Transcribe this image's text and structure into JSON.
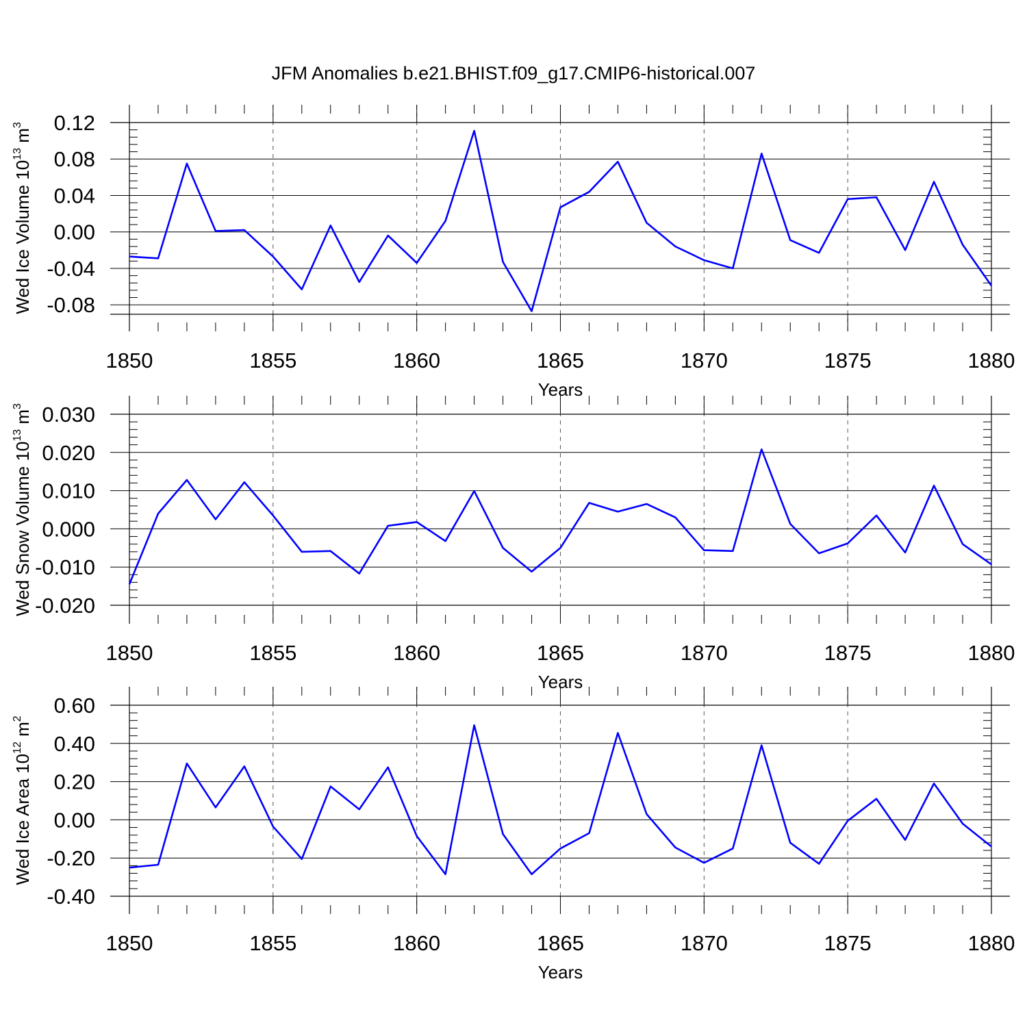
{
  "figure": {
    "title": "JFM Anomalies b.e21.BHIST.f09_g17.CMIP6-historical.007",
    "line_color": "#0000ff",
    "grid_color": "#555555"
  },
  "chart_data": [
    {
      "type": "line",
      "xlabel": "Years",
      "ylabel": {
        "pre": "Wed Ice Volume 10",
        "exp": "13",
        "unit": " m",
        "unit_exp": "3"
      },
      "xlim": [
        1850,
        1880
      ],
      "ylim": [
        -0.09,
        0.12
      ],
      "xticks": [
        1850,
        1855,
        1860,
        1865,
        1870,
        1875,
        1880
      ],
      "xtick_labels": [
        "1850",
        "1855",
        "1860",
        "1865",
        "1870",
        "1875",
        "1880"
      ],
      "yticks": [
        -0.08,
        -0.04,
        0.0,
        0.04,
        0.08,
        0.12
      ],
      "ytick_labels": [
        "-0.08",
        "-0.04",
        "0.00",
        "0.04",
        "0.08",
        "0.12"
      ],
      "grid": "vertical dashed at labeled x ticks",
      "x": [
        1850,
        1851,
        1852,
        1853,
        1854,
        1855,
        1856,
        1857,
        1858,
        1859,
        1860,
        1861,
        1862,
        1863,
        1864,
        1865,
        1866,
        1867,
        1868,
        1869,
        1870,
        1871,
        1872,
        1873,
        1874,
        1875,
        1876,
        1877,
        1878,
        1879,
        1880
      ],
      "values": [
        -0.027,
        -0.029,
        0.075,
        0.001,
        0.002,
        -0.027,
        -0.063,
        0.007,
        -0.055,
        -0.004,
        -0.034,
        0.012,
        0.111,
        -0.033,
        -0.087,
        0.027,
        0.044,
        0.077,
        0.01,
        -0.016,
        -0.031,
        -0.04,
        0.086,
        -0.009,
        -0.023,
        0.036,
        0.038,
        -0.02,
        0.055,
        -0.014,
        -0.059
      ]
    },
    {
      "type": "line",
      "xlabel": "Years",
      "ylabel": {
        "pre": "Wed Snow Volume 10",
        "exp": "13",
        "unit": " m",
        "unit_exp": "3"
      },
      "xlim": [
        1850,
        1880
      ],
      "ylim": [
        -0.02,
        0.03
      ],
      "xticks": [
        1850,
        1855,
        1860,
        1865,
        1870,
        1875,
        1880
      ],
      "xtick_labels": [
        "1850",
        "1855",
        "1860",
        "1865",
        "1870",
        "1875",
        "1880"
      ],
      "yticks": [
        -0.02,
        -0.01,
        0.0,
        0.01,
        0.02,
        0.03
      ],
      "ytick_labels": [
        "-0.020",
        "-0.010",
        "0.000",
        "0.010",
        "0.020",
        "0.030"
      ],
      "grid": "vertical dashed at labeled x ticks",
      "x": [
        1850,
        1851,
        1852,
        1853,
        1854,
        1855,
        1856,
        1857,
        1858,
        1859,
        1860,
        1861,
        1862,
        1863,
        1864,
        1865,
        1866,
        1867,
        1868,
        1869,
        1870,
        1871,
        1872,
        1873,
        1874,
        1875,
        1876,
        1877,
        1878,
        1879,
        1880
      ],
      "values": [
        -0.0145,
        0.004,
        0.0128,
        0.0025,
        0.0122,
        0.0035,
        -0.006,
        -0.0058,
        -0.0117,
        0.0008,
        0.0018,
        -0.0032,
        0.0099,
        -0.005,
        -0.0112,
        -0.005,
        0.0068,
        0.0045,
        0.0065,
        0.003,
        -0.0056,
        -0.0058,
        0.0208,
        0.0013,
        -0.0064,
        -0.0038,
        0.0035,
        -0.0062,
        0.0113,
        -0.004,
        -0.0093
      ]
    },
    {
      "type": "line",
      "xlabel": "Years",
      "ylabel": {
        "pre": "Wed Ice Area 10",
        "exp": "12",
        "unit": " m",
        "unit_exp": "2"
      },
      "xlim": [
        1850,
        1880
      ],
      "ylim": [
        -0.4,
        0.6
      ],
      "xticks": [
        1850,
        1855,
        1860,
        1865,
        1870,
        1875,
        1880
      ],
      "xtick_labels": [
        "1850",
        "1855",
        "1860",
        "1865",
        "1870",
        "1875",
        "1880"
      ],
      "yticks": [
        -0.4,
        -0.2,
        0.0,
        0.2,
        0.4,
        0.6
      ],
      "ytick_labels": [
        "-0.40",
        "-0.20",
        "0.00",
        "0.20",
        "0.40",
        "0.60"
      ],
      "grid": "vertical dashed at labeled x ticks",
      "x": [
        1850,
        1851,
        1852,
        1853,
        1854,
        1855,
        1856,
        1857,
        1858,
        1859,
        1860,
        1861,
        1862,
        1863,
        1864,
        1865,
        1866,
        1867,
        1868,
        1869,
        1870,
        1871,
        1872,
        1873,
        1874,
        1875,
        1876,
        1877,
        1878,
        1879,
        1880
      ],
      "values": [
        -0.25,
        -0.235,
        0.295,
        0.065,
        0.28,
        -0.035,
        -0.205,
        0.175,
        0.055,
        0.275,
        -0.085,
        -0.285,
        0.495,
        -0.075,
        -0.285,
        -0.15,
        -0.07,
        0.455,
        0.03,
        -0.145,
        -0.225,
        -0.15,
        0.39,
        -0.12,
        -0.23,
        -0.005,
        0.11,
        -0.105,
        0.19,
        -0.02,
        -0.14
      ]
    }
  ]
}
